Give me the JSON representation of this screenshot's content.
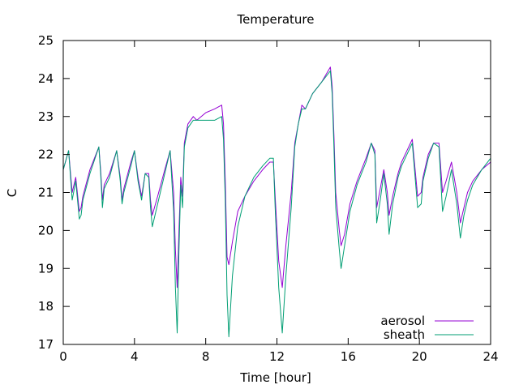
{
  "chart_data": {
    "type": "line",
    "title": "Temperature",
    "xlabel": "Time [hour]",
    "ylabel": "C",
    "xlim": [
      0,
      24
    ],
    "ylim": [
      17,
      25
    ],
    "xticks": [
      0,
      4,
      8,
      12,
      16,
      20,
      24
    ],
    "yticks": [
      17,
      18,
      19,
      20,
      21,
      22,
      23,
      24,
      25
    ],
    "grid": false,
    "legend_position": "bottom-right",
    "series": [
      {
        "name": "aerosol",
        "color": "#9400d3",
        "x": [
          0.0,
          0.3,
          0.5,
          0.7,
          0.9,
          1.0,
          1.1,
          1.5,
          2.0,
          2.1,
          2.2,
          2.3,
          2.6,
          3.0,
          3.2,
          3.3,
          3.4,
          3.8,
          4.0,
          4.2,
          4.4,
          4.6,
          4.8,
          4.9,
          5.0,
          5.3,
          5.7,
          6.0,
          6.2,
          6.3,
          6.4,
          6.5,
          6.6,
          6.7,
          6.8,
          7.0,
          7.3,
          7.5,
          8.0,
          8.5,
          8.9,
          9.0,
          9.1,
          9.2,
          9.3,
          9.5,
          9.8,
          10.2,
          10.7,
          11.2,
          11.6,
          11.8,
          11.9,
          12.1,
          12.3,
          12.5,
          12.8,
          13.0,
          13.2,
          13.4,
          13.6,
          14.0,
          14.5,
          15.0,
          15.1,
          15.2,
          15.3,
          15.5,
          15.6,
          15.8,
          16.1,
          16.5,
          17.0,
          17.3,
          17.5,
          17.6,
          17.8,
          18.0,
          18.2,
          18.3,
          18.5,
          18.8,
          19.0,
          19.3,
          19.6,
          19.9,
          20.1,
          20.2,
          20.5,
          20.8,
          21.1,
          21.3,
          21.5,
          21.8,
          22.1,
          22.3,
          22.5,
          22.7,
          23.0,
          23.5,
          24.0
        ],
        "y": [
          21.6,
          22.1,
          21.0,
          21.4,
          20.5,
          20.6,
          20.9,
          21.6,
          22.2,
          21.6,
          20.8,
          21.2,
          21.5,
          22.1,
          21.4,
          20.8,
          21.1,
          21.8,
          22.1,
          21.4,
          20.9,
          21.5,
          21.5,
          20.8,
          20.4,
          20.9,
          21.6,
          22.1,
          21.0,
          19.5,
          18.5,
          20.0,
          21.4,
          20.9,
          22.3,
          22.8,
          23.0,
          22.9,
          23.1,
          23.2,
          23.3,
          22.8,
          21.3,
          19.3,
          19.1,
          19.7,
          20.5,
          20.9,
          21.3,
          21.6,
          21.8,
          21.8,
          20.9,
          19.2,
          18.5,
          19.6,
          21.0,
          22.3,
          22.8,
          23.3,
          23.2,
          23.6,
          23.9,
          24.3,
          23.8,
          22.5,
          21.0,
          20.0,
          19.6,
          19.9,
          20.7,
          21.3,
          21.9,
          22.3,
          22.1,
          20.6,
          21.1,
          21.6,
          21.0,
          20.4,
          20.9,
          21.5,
          21.8,
          22.1,
          22.4,
          20.9,
          21.0,
          21.4,
          22.0,
          22.3,
          22.3,
          21.0,
          21.3,
          21.8,
          21.0,
          20.2,
          20.6,
          21.0,
          21.3,
          21.6,
          21.8
        ]
      },
      {
        "name": "sheath",
        "color": "#009e73",
        "x": [
          0.0,
          0.3,
          0.5,
          0.7,
          0.9,
          1.0,
          1.1,
          1.5,
          2.0,
          2.1,
          2.2,
          2.3,
          2.6,
          3.0,
          3.2,
          3.3,
          3.4,
          3.8,
          4.0,
          4.2,
          4.4,
          4.6,
          4.8,
          4.9,
          5.0,
          5.3,
          5.7,
          6.0,
          6.2,
          6.3,
          6.4,
          6.5,
          6.6,
          6.7,
          6.8,
          7.0,
          7.3,
          7.5,
          8.0,
          8.5,
          8.9,
          9.0,
          9.1,
          9.2,
          9.3,
          9.5,
          9.8,
          10.2,
          10.7,
          11.2,
          11.6,
          11.8,
          11.9,
          12.1,
          12.3,
          12.5,
          12.8,
          13.0,
          13.2,
          13.4,
          13.6,
          14.0,
          14.5,
          15.0,
          15.1,
          15.2,
          15.3,
          15.5,
          15.6,
          15.8,
          16.1,
          16.5,
          17.0,
          17.3,
          17.5,
          17.6,
          17.8,
          18.0,
          18.2,
          18.3,
          18.5,
          18.8,
          19.0,
          19.3,
          19.6,
          19.9,
          20.1,
          20.2,
          20.5,
          20.8,
          21.1,
          21.3,
          21.5,
          21.8,
          22.1,
          22.3,
          22.5,
          22.7,
          23.0,
          23.5,
          24.0
        ],
        "y": [
          21.6,
          22.1,
          20.8,
          21.3,
          20.3,
          20.4,
          20.8,
          21.5,
          22.2,
          21.5,
          20.6,
          21.1,
          21.4,
          22.1,
          21.3,
          20.7,
          21.0,
          21.7,
          22.1,
          21.3,
          20.8,
          21.5,
          21.4,
          20.6,
          20.1,
          20.7,
          21.5,
          22.1,
          20.5,
          18.5,
          17.3,
          19.5,
          21.2,
          20.6,
          22.2,
          22.7,
          22.9,
          22.9,
          22.9,
          22.9,
          23.0,
          22.4,
          20.8,
          18.3,
          17.2,
          18.8,
          20.1,
          20.9,
          21.4,
          21.7,
          21.9,
          21.9,
          20.6,
          18.5,
          17.3,
          18.8,
          20.6,
          22.2,
          22.8,
          23.2,
          23.2,
          23.6,
          23.9,
          24.2,
          23.6,
          22.2,
          20.6,
          19.5,
          19.0,
          19.6,
          20.5,
          21.2,
          21.8,
          22.3,
          22.0,
          20.2,
          20.8,
          21.5,
          20.7,
          19.9,
          20.7,
          21.4,
          21.7,
          22.0,
          22.3,
          20.6,
          20.7,
          21.3,
          21.9,
          22.3,
          22.2,
          20.5,
          20.9,
          21.6,
          20.7,
          19.8,
          20.4,
          20.8,
          21.2,
          21.6,
          21.9
        ]
      }
    ]
  }
}
